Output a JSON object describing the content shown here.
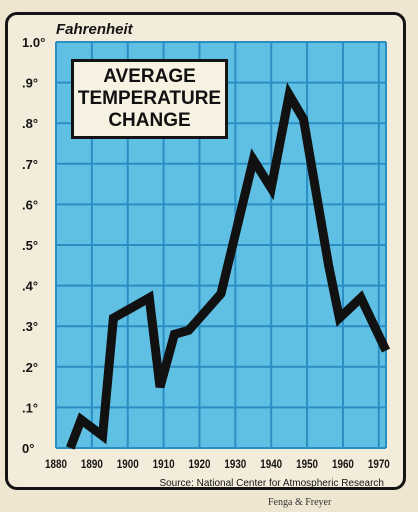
{
  "chart_data": {
    "type": "line",
    "title_lines": [
      "AVERAGE",
      "TEMPERATURE",
      "CHANGE"
    ],
    "unit_label": "Fahrenheit",
    "source": "Source: National Center for Atmospheric Research",
    "credit": "Fenga & Freyer",
    "x_ticks": [
      "1880",
      "1890",
      "1900",
      "1910",
      "1920",
      "1930",
      "1940",
      "1950",
      "1960",
      "1970"
    ],
    "y_ticks": [
      "0°",
      ".1°",
      ".2°",
      ".3°",
      ".4°",
      ".5°",
      ".6°",
      ".7°",
      ".8°",
      ".9°",
      "1.0°"
    ],
    "xlim": [
      1880,
      1972
    ],
    "ylim": [
      0,
      1.0
    ],
    "grid": true,
    "series": [
      {
        "line_color": "#111111",
        "x": [
          1884,
          1887,
          1893,
          1896,
          1906,
          1909,
          1913,
          1917,
          1926,
          1935,
          1940,
          1945,
          1949,
          1956,
          1959,
          1965,
          1972
        ],
        "y": [
          0.0,
          0.07,
          0.03,
          0.32,
          0.37,
          0.15,
          0.28,
          0.29,
          0.38,
          0.71,
          0.64,
          0.87,
          0.81,
          0.45,
          0.32,
          0.37,
          0.24
        ]
      }
    ],
    "colors": {
      "plot_background": "#5fc0e4",
      "grid_lines": "#2a8ec2",
      "line": "#111111"
    }
  }
}
